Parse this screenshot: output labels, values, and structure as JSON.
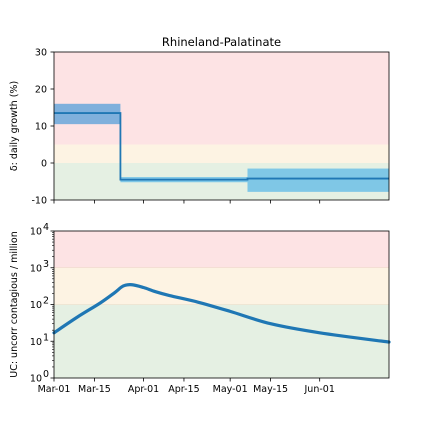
{
  "chart_data": [
    {
      "type": "line",
      "title": "Rhineland-Palatinate",
      "ylabel": "δ: daily growth (%)",
      "ylim": [
        -10,
        30
      ],
      "yticks": [
        -10,
        0,
        10,
        20,
        30
      ],
      "xlim": [
        "2020-03-01",
        "2020-06-25"
      ],
      "bands": [
        {
          "from": 5,
          "to": 30,
          "color": "#fde3e4"
        },
        {
          "from": 0,
          "to": 5,
          "color": "#fdf3e3"
        },
        {
          "from": -10,
          "to": 0,
          "color": "#e5f0e3"
        }
      ],
      "series": [
        {
          "kind": "step",
          "color": "#1f77b4",
          "segments": [
            {
              "start": "2020-03-01",
              "end": "2020-03-24",
              "value": 13.5,
              "ci": [
                10.5,
                16.0
              ],
              "ci_color": "#7fb0dc"
            },
            {
              "start": "2020-03-24",
              "end": "2020-05-07",
              "value": -4.5,
              "ci": [
                -5.2,
                -3.8
              ],
              "ci_color": "#7fc7e6"
            },
            {
              "start": "2020-05-07",
              "end": "2020-06-25",
              "value": -4.2,
              "ci": [
                -7.8,
                -1.5
              ],
              "ci_color": "#7fc7e6"
            }
          ]
        }
      ]
    },
    {
      "type": "line",
      "ylabel": "UC: uncorr contagious / million",
      "yscale": "log",
      "ylim": [
        1,
        10000
      ],
      "yticks": [
        1,
        10,
        100,
        1000,
        10000
      ],
      "ytick_labels": [
        {
          "base": "10",
          "exp": "0"
        },
        {
          "base": "10",
          "exp": "1"
        },
        {
          "base": "10",
          "exp": "2"
        },
        {
          "base": "10",
          "exp": "3"
        },
        {
          "base": "10",
          "exp": "4"
        }
      ],
      "x": [
        "2020-03-01",
        "2020-03-09",
        "2020-03-17",
        "2020-03-22",
        "2020-03-25",
        "2020-03-28",
        "2020-04-01",
        "2020-04-05",
        "2020-04-10",
        "2020-04-20",
        "2020-05-01",
        "2020-05-15",
        "2020-06-01",
        "2020-06-25"
      ],
      "xtick_labels": [
        "Mar-01",
        "Mar-15",
        "Apr-01",
        "Apr-15",
        "May-01",
        "May-15",
        "Jun-01"
      ],
      "xtick_dates": [
        "2020-03-01",
        "2020-03-15",
        "2020-04-01",
        "2020-04-15",
        "2020-05-01",
        "2020-05-15",
        "2020-06-01"
      ],
      "bands": [
        {
          "from": 1000,
          "to": 10000,
          "color": "#fde3e4"
        },
        {
          "from": 100,
          "to": 1000,
          "color": "#fdf3e3"
        },
        {
          "from": 1,
          "to": 100,
          "color": "#e5f0e3"
        }
      ],
      "series": [
        {
          "color": "#1f77b4",
          "values": [
            17,
            45,
            110,
            210,
            320,
            345,
            290,
            225,
            175,
            115,
            65,
            30,
            17,
            9.5
          ]
        }
      ]
    }
  ]
}
